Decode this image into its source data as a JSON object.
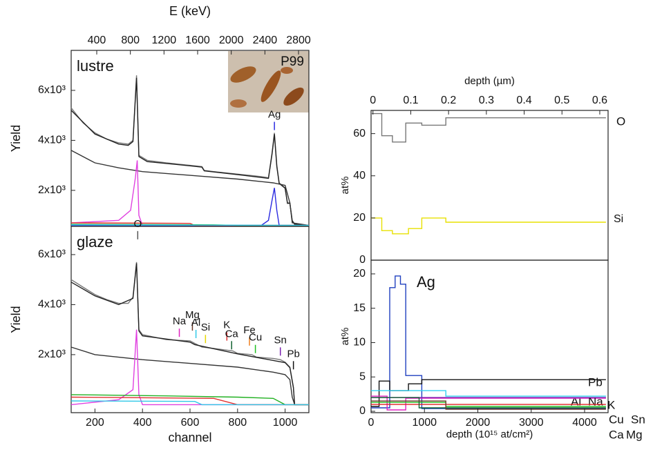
{
  "chart_data": [
    {
      "type": "line",
      "label": "lustre",
      "ylabel": "Yield",
      "x2label": "E (keV)",
      "inset_label": "P99",
      "xlim": [
        100,
        1100
      ],
      "ylim": [
        560,
        7600
      ],
      "x2lim": [
        96,
        2923
      ],
      "x2ticks": [
        400,
        800,
        1200,
        1600,
        2000,
        2400,
        2800
      ],
      "yticks": [
        {
          "value": 2000,
          "label": "2x10³"
        },
        {
          "value": 4000,
          "label": "4x10³"
        },
        {
          "value": 6000,
          "label": "6x10³"
        }
      ],
      "series": [
        {
          "color": "#777777",
          "x": [
            100,
            150,
            200,
            250,
            300,
            340,
            360,
            375,
            385,
            420,
            500,
            600,
            650,
            660,
            700,
            800,
            850,
            900,
            930,
            945,
            955,
            965,
            975,
            1000,
            1010,
            1020,
            1030,
            1040,
            1100
          ],
          "values": [
            5300,
            4700,
            4300,
            4050,
            3900,
            3850,
            4000,
            6600,
            3400,
            3200,
            3100,
            3000,
            2950,
            2800,
            2750,
            2650,
            2600,
            2550,
            2500,
            3500,
            4300,
            3000,
            2300,
            2100,
            1500,
            1500,
            800,
            650,
            600
          ]
        },
        {
          "color": "#222222",
          "x": [
            100,
            200,
            300,
            340,
            360,
            375,
            385,
            420,
            600,
            650,
            660,
            800,
            930,
            945,
            955,
            965,
            975,
            1000,
            1010,
            1020,
            1030,
            1040,
            1100
          ],
          "values": [
            5200,
            4250,
            3850,
            3800,
            3950,
            6500,
            3350,
            3150,
            2980,
            2930,
            2780,
            2630,
            2480,
            3450,
            4250,
            2950,
            2280,
            2080,
            1480,
            1480,
            780,
            640,
            600
          ]
        },
        {
          "color": "#333333",
          "x": [
            100,
            200,
            300,
            400,
            600,
            800,
            950,
            1000,
            1020,
            1030,
            1100
          ],
          "values": [
            3600,
            3100,
            2900,
            2750,
            2600,
            2450,
            2300,
            2200,
            1500,
            700,
            600
          ]
        },
        {
          "color": "#e040e0",
          "x": [
            100,
            300,
            350,
            370,
            378,
            385,
            400,
            1100
          ],
          "values": [
            700,
            800,
            1200,
            2500,
            3200,
            1000,
            600,
            600
          ]
        },
        {
          "color": "#2a2ae0",
          "x": [
            100,
            900,
            930,
            945,
            955,
            965,
            975,
            1100
          ],
          "values": [
            600,
            600,
            800,
            1600,
            2100,
            1200,
            600,
            600
          ]
        },
        {
          "color": "#e03030",
          "x": [
            100,
            600,
            620,
            1100
          ],
          "values": [
            700,
            680,
            600,
            600
          ]
        },
        {
          "color": "#20b020",
          "x": [
            100,
            700,
            800,
            1100
          ],
          "values": [
            640,
            620,
            600,
            600
          ]
        },
        {
          "color": "#30c8e8",
          "x": [
            100,
            650,
            1100
          ],
          "values": [
            620,
            610,
            600
          ]
        }
      ],
      "annotations": [
        {
          "text": "Ag",
          "x": 955,
          "y": 4300,
          "color": "#2a2ae0"
        }
      ]
    },
    {
      "type": "line",
      "label": "glaze",
      "ylabel": "Yield",
      "xlabel": "channel",
      "xlim": [
        100,
        1100
      ],
      "ylim": [
        -320,
        7130
      ],
      "xticks": [
        200,
        400,
        600,
        800,
        1000
      ],
      "yticks": [
        {
          "value": 2000,
          "label": "2x10³"
        },
        {
          "value": 4000,
          "label": "4x10³"
        },
        {
          "value": 6000,
          "label": "6x10³"
        }
      ],
      "series": [
        {
          "color": "#777777",
          "x": [
            100,
            150,
            200,
            250,
            300,
            340,
            360,
            375,
            385,
            400,
            500,
            600,
            620,
            650,
            700,
            780,
            800,
            860,
            880,
            950,
            980,
            1000,
            1020,
            1035,
            1040,
            1100
          ],
          "values": [
            5000,
            4700,
            4400,
            4200,
            4050,
            4050,
            4300,
            5700,
            3000,
            2800,
            2600,
            2550,
            2450,
            2300,
            2250,
            2150,
            2050,
            2000,
            1900,
            1850,
            1800,
            1700,
            1500,
            700,
            0,
            0
          ]
        },
        {
          "color": "#222222",
          "x": [
            100,
            200,
            300,
            360,
            375,
            385,
            400,
            600,
            620,
            800,
            1000,
            1020,
            1035,
            1040,
            1100
          ],
          "values": [
            4900,
            4350,
            4000,
            4250,
            5650,
            2950,
            2750,
            2500,
            2400,
            2030,
            1680,
            1480,
            680,
            0,
            0
          ]
        },
        {
          "color": "#333333",
          "x": [
            100,
            200,
            400,
            600,
            800,
            950,
            1000,
            1020,
            1030,
            1040,
            1100
          ],
          "values": [
            2300,
            2000,
            1800,
            1650,
            1500,
            1300,
            1200,
            1000,
            300,
            0,
            0
          ]
        },
        {
          "color": "#e040e0",
          "x": [
            100,
            300,
            360,
            375,
            385,
            400,
            1100
          ],
          "values": [
            0,
            200,
            600,
            3000,
            400,
            0,
            0
          ]
        },
        {
          "color": "#20b020",
          "x": [
            100,
            500,
            800,
            950,
            1000,
            1100
          ],
          "values": [
            400,
            350,
            300,
            250,
            0,
            0
          ]
        },
        {
          "color": "#e03030",
          "x": [
            100,
            700,
            800,
            1100
          ],
          "values": [
            300,
            250,
            0,
            0
          ]
        },
        {
          "color": "#30c8e8",
          "x": [
            100,
            620,
            650,
            1100
          ],
          "values": [
            150,
            130,
            0,
            0
          ]
        }
      ],
      "annotations": [
        {
          "text": "O",
          "x": 380,
          "y": 6500,
          "color": "#555555"
        },
        {
          "text": "Na",
          "x": 555,
          "y": 2600,
          "color": "#e020c0"
        },
        {
          "text": "Mg",
          "x": 610,
          "y": 2850,
          "color": "#6b3a2a"
        },
        {
          "text": "Al",
          "x": 625,
          "y": 2550,
          "color": "#30c8e8"
        },
        {
          "text": "Si",
          "x": 665,
          "y": 2350,
          "color": "#e8d800"
        },
        {
          "text": "K",
          "x": 755,
          "y": 2450,
          "color": "#e03030"
        },
        {
          "text": "Ca",
          "x": 775,
          "y": 2100,
          "color": "#106030"
        },
        {
          "text": "Fe",
          "x": 850,
          "y": 2250,
          "color": "#f08020"
        },
        {
          "text": "Cu",
          "x": 875,
          "y": 1950,
          "color": "#20c020"
        },
        {
          "text": "Sn",
          "x": 980,
          "y": 1850,
          "color": "#7a20b0"
        },
        {
          "text": "Pb",
          "x": 1035,
          "y": 1300,
          "color": "#111111"
        }
      ]
    },
    {
      "type": "line",
      "ylabel": "at%",
      "x2label": "depth (µm)",
      "xlim": [
        0,
        4440
      ],
      "ylim": [
        0,
        71
      ],
      "x2lim": [
        -0.005,
        0.622
      ],
      "x2ticks": [
        0,
        0.1,
        0.2,
        0.3,
        0.4,
        0.5,
        0.6
      ],
      "yticks": [
        0,
        20,
        40,
        60
      ],
      "series": [
        {
          "name": "O",
          "color": "#777777",
          "x": [
            0,
            200,
            200,
            400,
            400,
            650,
            650,
            950,
            950,
            1400,
            1400,
            4400
          ],
          "values": [
            69.5,
            69.5,
            59,
            59,
            56,
            56,
            65,
            65,
            64,
            64,
            67.5,
            67.5
          ]
        },
        {
          "name": "Si",
          "color": "#e8e000",
          "x": [
            0,
            200,
            200,
            400,
            400,
            700,
            700,
            950,
            950,
            1400,
            1400,
            4400
          ],
          "values": [
            20,
            20,
            14,
            14,
            12.5,
            12.5,
            15,
            15,
            20,
            20,
            18,
            18
          ]
        }
      ]
    },
    {
      "type": "line",
      "ylabel": "at%",
      "xlabel": "depth (10¹⁵ at/cm²)",
      "xlim": [
        0,
        4440
      ],
      "ylim": [
        -0.2,
        22
      ],
      "xticks": [
        0,
        1000,
        2000,
        3000,
        4000
      ],
      "yticks": [
        0,
        5,
        10,
        15,
        20
      ],
      "series": [
        {
          "name": "Ag",
          "color": "#1f3fbf",
          "x": [
            0,
            350,
            350,
            450,
            450,
            550,
            550,
            650,
            650,
            950,
            950,
            4400
          ],
          "values": [
            0.5,
            0.5,
            18,
            18,
            19.7,
            19.7,
            18.5,
            18.5,
            5.2,
            5.2,
            0.4,
            0.4
          ]
        },
        {
          "name": "Pb",
          "color": "#111111",
          "x": [
            0,
            150,
            150,
            350,
            350,
            700,
            700,
            950,
            950,
            4400
          ],
          "values": [
            0.7,
            0.7,
            4.4,
            4.4,
            3,
            3,
            4,
            4,
            4.6,
            4.6
          ]
        },
        {
          "name": "Al",
          "color": "#30d0f0",
          "x": [
            0,
            1400,
            1400,
            4400
          ],
          "values": [
            3,
            3,
            2.2,
            2.2
          ]
        },
        {
          "name": "Na",
          "color": "#e020c0",
          "x": [
            0,
            300,
            300,
            650,
            650,
            4400
          ],
          "values": [
            2.2,
            2.2,
            0.2,
            0.2,
            1.9,
            1.9
          ]
        },
        {
          "name": "K",
          "color": "#e02020",
          "x": [
            0,
            4400
          ],
          "values": [
            1,
            1
          ]
        },
        {
          "name": "Cu",
          "color": "#20c020",
          "x": [
            0,
            1400,
            1400,
            4400
          ],
          "values": [
            1.3,
            1.3,
            0.7,
            0.7
          ]
        },
        {
          "name": "Sn",
          "color": "#7a20b0",
          "x": [
            0,
            4400
          ],
          "values": [
            2,
            2
          ]
        },
        {
          "name": "Ca",
          "color": "#106030",
          "x": [
            0,
            900,
            900,
            4400
          ],
          "values": [
            2,
            2,
            0.5,
            0.5
          ]
        },
        {
          "name": "Mg",
          "color": "#6b3a2a",
          "x": [
            0,
            1400,
            1400,
            4400
          ],
          "values": [
            1.5,
            1.5,
            0.3,
            0.3
          ]
        }
      ]
    }
  ]
}
